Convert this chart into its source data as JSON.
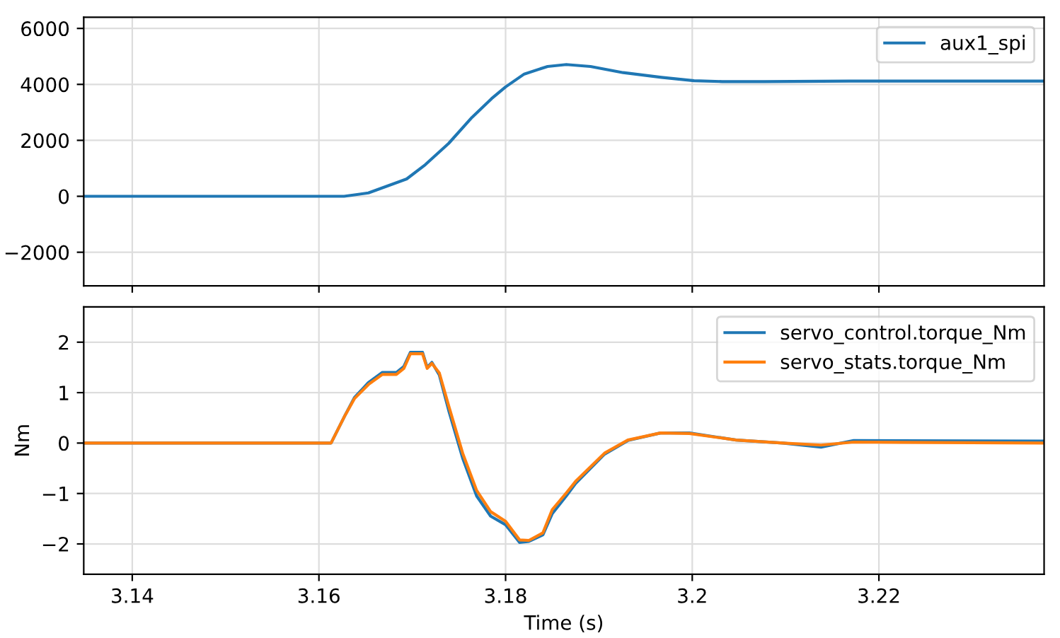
{
  "chart_data": [
    {
      "type": "line",
      "xlim": [
        3.1348,
        3.2377
      ],
      "ylim": [
        -3200,
        6400
      ],
      "xticks": [
        3.14,
        3.16,
        3.18,
        3.2,
        3.22
      ],
      "yticks": [
        {
          "value": -2000,
          "label": "−2000"
        },
        0,
        2000,
        4000,
        6000
      ],
      "tick_labels": "y",
      "grid": true,
      "legend": "top right",
      "series": [
        {
          "name": "aux1_spi",
          "color": "#1f77b4",
          "x": [
            3.1348,
            3.1627,
            3.1653,
            3.1694,
            3.1714,
            3.1739,
            3.1764,
            3.1785,
            3.18,
            3.182,
            3.1845,
            3.1865,
            3.1891,
            3.1926,
            3.1967,
            3.2002,
            3.2032,
            3.2077,
            3.2168,
            3.2377
          ],
          "values": [
            0,
            0,
            120,
            620,
            1130,
            1890,
            2820,
            3490,
            3910,
            4370,
            4640,
            4710,
            4640,
            4420,
            4250,
            4130,
            4100,
            4100,
            4120,
            4120
          ]
        }
      ]
    },
    {
      "type": "line",
      "xlim": [
        3.1348,
        3.2377
      ],
      "ylim": [
        -2.6,
        2.7
      ],
      "xticks": [
        3.14,
        3.16,
        3.18,
        3.2,
        3.22
      ],
      "yticks": [
        {
          "value": -2,
          "label": "−2"
        },
        {
          "value": -1,
          "label": "−1"
        },
        0,
        1,
        2
      ],
      "xlabel": "Time (s)",
      "ylabel": "Nm",
      "grid": true,
      "legend": "top right",
      "series": [
        {
          "name": "servo_control.torque_Nm",
          "color": "#1f77b4",
          "x": [
            3.1348,
            3.1613,
            3.1628,
            3.1638,
            3.1653,
            3.1668,
            3.1683,
            3.1691,
            3.1698,
            3.1711,
            3.1716,
            3.1721,
            3.1729,
            3.1739,
            3.1754,
            3.1769,
            3.1784,
            3.18,
            3.1815,
            3.1825,
            3.184,
            3.185,
            3.1865,
            3.1875,
            3.1906,
            3.1931,
            3.1966,
            3.1997,
            3.2047,
            3.2097,
            3.2138,
            3.2173,
            3.2375
          ],
          "values": [
            0,
            0,
            0.55,
            0.9,
            1.2,
            1.4,
            1.4,
            1.52,
            1.8,
            1.8,
            1.5,
            1.6,
            1.35,
            0.65,
            -0.3,
            -1.05,
            -1.45,
            -1.62,
            -1.97,
            -1.95,
            -1.82,
            -1.4,
            -1.05,
            -0.8,
            -0.22,
            0.05,
            0.2,
            0.2,
            0.06,
            0,
            -0.08,
            0.05,
            0.04
          ]
        },
        {
          "name": "servo_stats.torque_Nm",
          "color": "#ff7f0e",
          "x": [
            3.1348,
            3.1613,
            3.1628,
            3.1638,
            3.1653,
            3.1668,
            3.1683,
            3.1691,
            3.1698,
            3.1711,
            3.1716,
            3.1721,
            3.1729,
            3.1739,
            3.1754,
            3.1769,
            3.1784,
            3.18,
            3.1815,
            3.1825,
            3.184,
            3.185,
            3.1865,
            3.1875,
            3.1906,
            3.1931,
            3.1966,
            3.1997,
            3.2047,
            3.2097,
            3.2138,
            3.2173,
            3.2375
          ],
          "values": [
            0,
            0,
            0.55,
            0.88,
            1.16,
            1.36,
            1.36,
            1.48,
            1.77,
            1.77,
            1.48,
            1.58,
            1.39,
            0.74,
            -0.2,
            -0.94,
            -1.36,
            -1.55,
            -1.92,
            -1.93,
            -1.78,
            -1.32,
            -0.99,
            -0.76,
            -0.2,
            0.06,
            0.2,
            0.19,
            0.06,
            0,
            -0.04,
            0.02,
            0
          ]
        }
      ]
    }
  ]
}
